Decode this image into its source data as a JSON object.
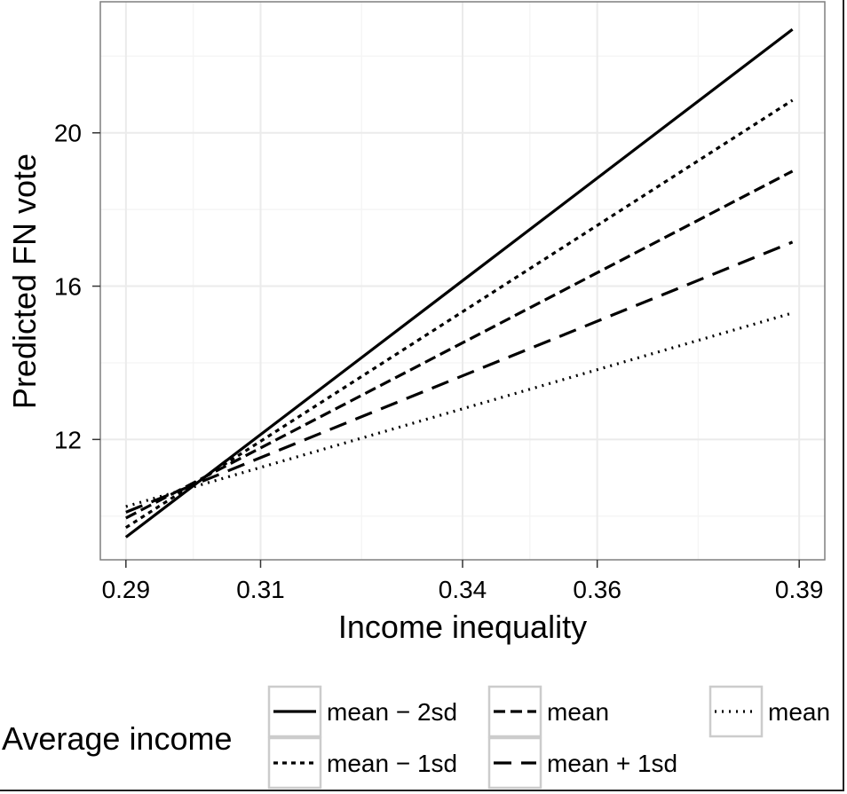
{
  "chart_data": {
    "type": "line",
    "title": "",
    "xlabel": "Income inequality",
    "ylabel": "Predicted FN vote",
    "x_ticks": [
      0.29,
      0.31,
      0.34,
      0.36,
      0.39
    ],
    "x_tick_labels": [
      "0.29",
      "0.31",
      "0.34",
      "0.36",
      "0.39"
    ],
    "y_ticks": [
      12,
      16,
      20
    ],
    "y_tick_labels": [
      "12",
      "16",
      "20"
    ],
    "xlim": [
      0.2862,
      0.3938
    ],
    "ylim": [
      8.86,
      23.42
    ],
    "grid": true,
    "legend": {
      "title": "Average income",
      "placement": "bottom"
    },
    "series": [
      {
        "name": "mean − 2sd",
        "dash": "solid",
        "x": [
          0.29,
          0.389
        ],
        "y": [
          9.45,
          22.7
        ]
      },
      {
        "name": "mean − 1sd",
        "dash": "dotted-short",
        "x": [
          0.29,
          0.389
        ],
        "y": [
          9.7,
          20.85
        ]
      },
      {
        "name": "mean",
        "dash": "dashed",
        "x": [
          0.29,
          0.389
        ],
        "y": [
          9.95,
          19.0
        ]
      },
      {
        "name": "mean + 1sd",
        "dash": "longdash",
        "x": [
          0.29,
          0.389
        ],
        "y": [
          10.1,
          17.15
        ]
      },
      {
        "name": "mean",
        "dash": "dotted",
        "x": [
          0.29,
          0.389
        ],
        "y": [
          10.25,
          15.3
        ]
      }
    ],
    "colors": {
      "line": "#000000",
      "panel_border": "#7f7f7f",
      "grid_major": "#ebebeb",
      "grid_minor": "#f5f5f5",
      "legend_key_border": "#cccccc"
    }
  }
}
